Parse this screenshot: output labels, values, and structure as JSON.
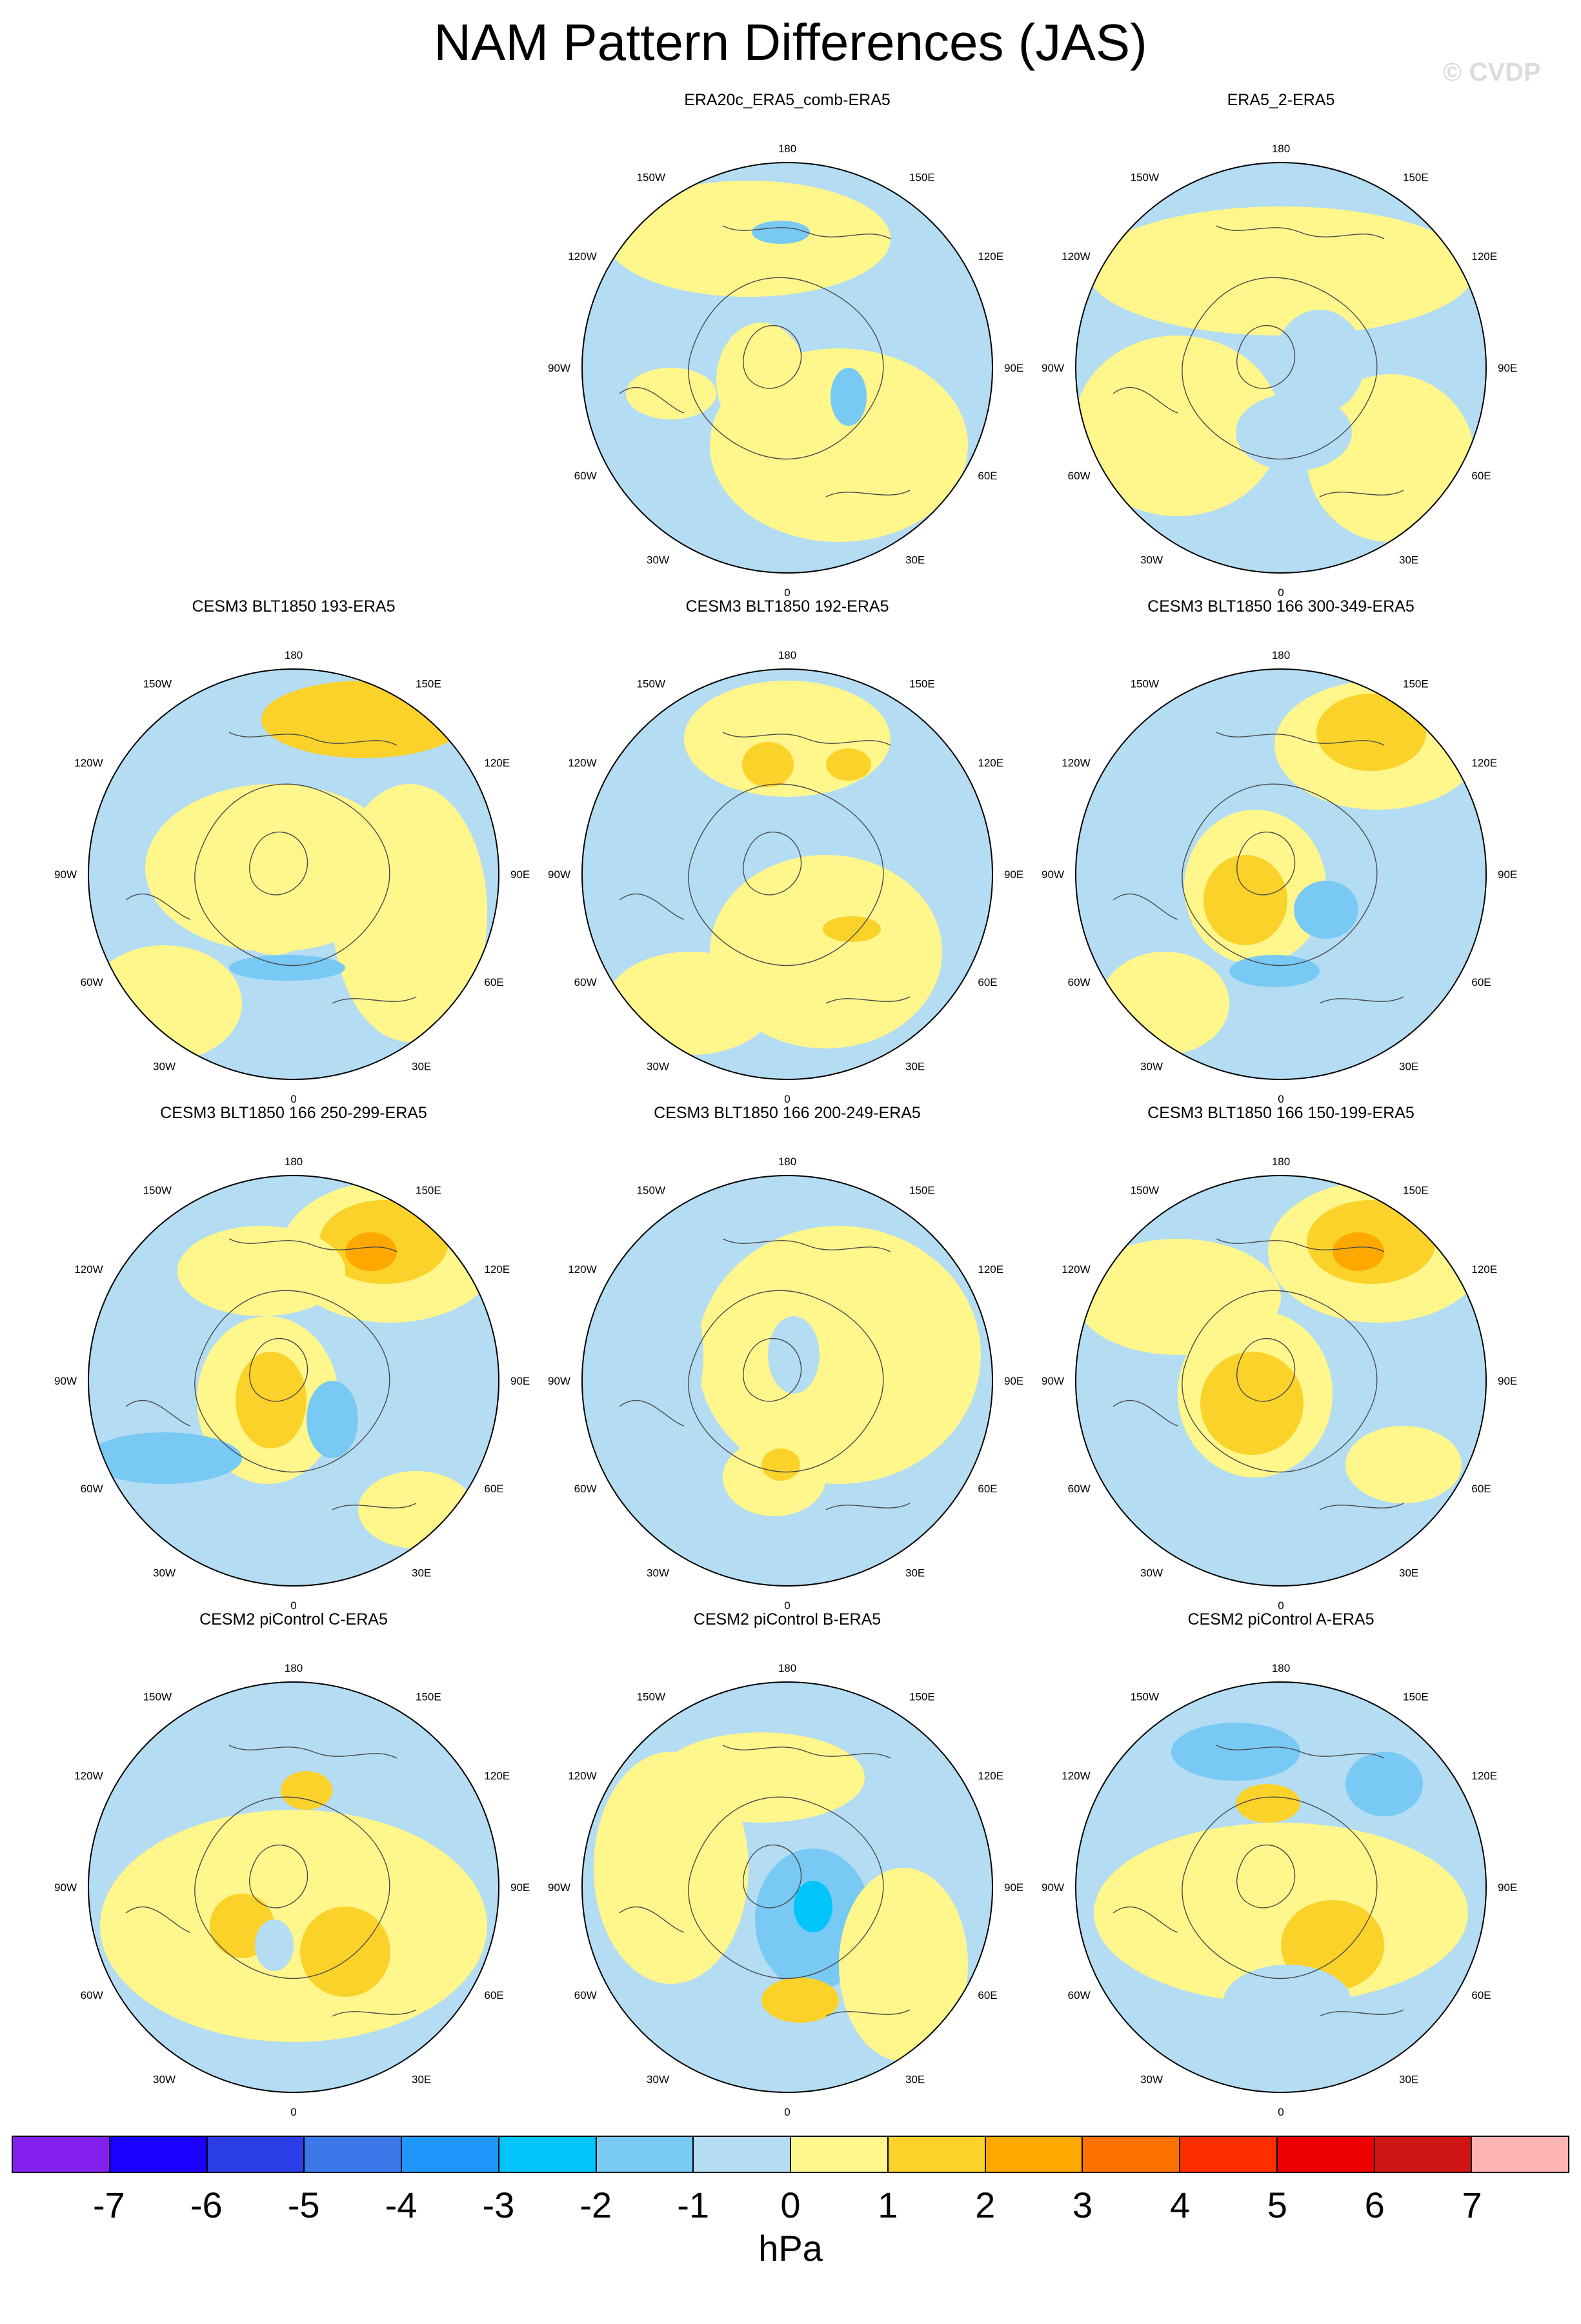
{
  "title": "NAM Pattern Differences (JAS)",
  "watermark": "© CVDP",
  "map_labels": {
    "lon_180": "180",
    "lon_150e": "150E",
    "lon_120e": "120E",
    "lon_90e": "90E",
    "lon_60e": "60E",
    "lon_30e": "30E",
    "lon_0": "0",
    "lon_30w": "30W",
    "lon_60w": "60W",
    "lon_90w": "90W",
    "lon_120w": "120W",
    "lon_150w": "150W"
  },
  "panels": [
    {
      "title": "ERA20c_ERA5_comb-ERA5"
    },
    {
      "title": "ERA5_2-ERA5"
    },
    {
      "title": "CESM3 BLT1850 193-ERA5"
    },
    {
      "title": "CESM3 BLT1850 192-ERA5"
    },
    {
      "title": "CESM3 BLT1850 166 300-349-ERA5"
    },
    {
      "title": "CESM3 BLT1850 166 250-299-ERA5"
    },
    {
      "title": "CESM3 BLT1850 166 200-249-ERA5"
    },
    {
      "title": "CESM3 BLT1850 166 150-199-ERA5"
    },
    {
      "title": "CESM2 piControl C-ERA5"
    },
    {
      "title": "CESM2 piControl B-ERA5"
    },
    {
      "title": "CESM2 piControl A-ERA5"
    }
  ],
  "colorbar": {
    "colors": [
      "#8420ee",
      "#1a00ff",
      "#2b3ee6",
      "#3a78ea",
      "#1e96fa",
      "#00c4fa",
      "#78c9f4",
      "#b4dcf2",
      "#fff68c",
      "#fad22a",
      "#ffa800",
      "#ff7200",
      "#ff2e00",
      "#ee0000",
      "#d01515",
      "#ffb4b4"
    ],
    "ticks": [
      "-7",
      "-6",
      "-5",
      "-4",
      "-3",
      "-2",
      "-1",
      "0",
      "1",
      "2",
      "3",
      "4",
      "5",
      "6",
      "7"
    ],
    "units": "hPa"
  },
  "fill_colors": {
    "light_blue": "#b4dcf2",
    "blue": "#78c9f4",
    "yellow": "#fff68c",
    "gold": "#fad22a",
    "orange": "#ffa800",
    "cyan": "#00c4fa"
  }
}
